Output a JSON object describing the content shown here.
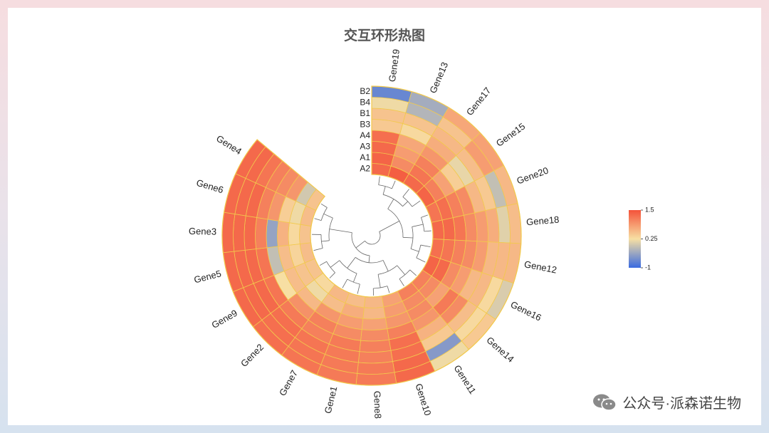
{
  "chart_data": {
    "type": "heatmap",
    "title": "交互环形热图",
    "tracks": [
      "A2",
      "A1",
      "A3",
      "A4",
      "B3",
      "B1",
      "B4",
      "B2"
    ],
    "genes": [
      "Gene19",
      "Gene13",
      "Gene17",
      "Gene15",
      "Gene20",
      "Gene18",
      "Gene12",
      "Gene16",
      "Gene14",
      "Gene11",
      "Gene10",
      "Gene8",
      "Gene1",
      "Gene7",
      "Gene2",
      "Gene9",
      "Gene5",
      "Gene3",
      "Gene6",
      "Gene4"
    ],
    "values": {
      "Gene19": [
        1.3,
        1.35,
        1.3,
        1.25,
        0.45,
        0.5,
        0.2,
        -0.7
      ],
      "Gene13": [
        1.4,
        1.0,
        0.85,
        0.75,
        0.3,
        0.5,
        -0.2,
        -0.3
      ],
      "Gene17": [
        1.3,
        1.2,
        1.1,
        0.9,
        0.7,
        0.6,
        0.5,
        0.75
      ],
      "Gene15": [
        1.35,
        1.1,
        0.8,
        0.4,
        0.15,
        0.55,
        0.85,
        0.8
      ],
      "Gene20": [
        1.2,
        1.25,
        1.1,
        1.0,
        0.6,
        0.45,
        -0.1,
        0.6
      ],
      "Gene18": [
        1.3,
        1.3,
        1.2,
        1.0,
        0.85,
        0.7,
        0.1,
        0.55
      ],
      "Gene12": [
        1.25,
        1.2,
        1.1,
        1.0,
        0.85,
        0.6,
        0.6,
        0.6
      ],
      "Gene16": [
        1.35,
        1.3,
        1.0,
        0.85,
        0.6,
        0.6,
        0.3,
        0.05
      ],
      "Gene14": [
        1.1,
        1.0,
        0.8,
        1.15,
        1.0,
        0.55,
        0.3,
        0.45
      ],
      "Gene11": [
        1.1,
        1.0,
        1.0,
        0.9,
        0.65,
        0.45,
        -0.5,
        0.2
      ],
      "Gene10": [
        0.8,
        0.85,
        0.9,
        1.1,
        1.25,
        1.25,
        1.3,
        1.3
      ],
      "Gene8": [
        0.6,
        0.6,
        0.8,
        1.0,
        1.1,
        1.1,
        1.15,
        1.15
      ],
      "Gene1": [
        0.55,
        0.7,
        0.85,
        1.0,
        1.15,
        1.15,
        1.15,
        1.15
      ],
      "Gene7": [
        0.6,
        0.55,
        0.9,
        1.1,
        1.1,
        1.2,
        1.2,
        1.2
      ],
      "Gene2": [
        0.3,
        0.2,
        0.6,
        0.95,
        1.15,
        1.25,
        1.25,
        1.25
      ],
      "Gene9": [
        0.5,
        0.5,
        0.55,
        0.25,
        1.2,
        1.3,
        1.3,
        1.3
      ],
      "Gene5": [
        0.55,
        0.35,
        0.55,
        -0.1,
        1.2,
        1.3,
        1.3,
        1.3
      ],
      "Gene3": [
        0.5,
        0.3,
        0.65,
        -0.4,
        1.1,
        1.3,
        1.3,
        1.3
      ],
      "Gene6": [
        0.55,
        0.2,
        0.4,
        0.9,
        1.1,
        1.3,
        1.3,
        1.3
      ],
      "Gene4": [
        0.5,
        0.0,
        0.9,
        1.0,
        1.1,
        1.2,
        1.3,
        1.3
      ]
    },
    "colorscale": {
      "min": -1,
      "mid": 0.25,
      "max": 1.5,
      "low_color": "#3b6be0",
      "mid_color": "#f7dfa3",
      "high_color": "#f4533a"
    },
    "legend": {
      "ticks": [
        "1.5",
        "0.25",
        "-1"
      ],
      "position": "right"
    },
    "dendrogram": true,
    "xlabel": "",
    "ylabel": ""
  },
  "watermark": {
    "text": "公众号·派森诺生物",
    "icon": "wechat-icon"
  }
}
